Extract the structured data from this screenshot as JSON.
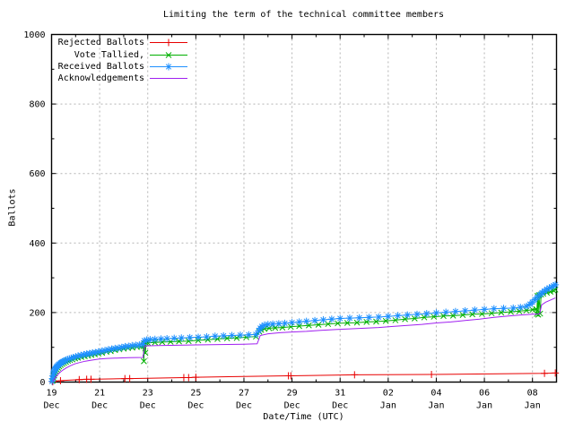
{
  "title": "Limiting the term of the technical committee members",
  "x_axis": {
    "label": "Date/Time (UTC)",
    "ticks": [
      {
        "d": 0,
        "top": "19",
        "bottom": "Dec"
      },
      {
        "d": 2,
        "top": "21",
        "bottom": "Dec"
      },
      {
        "d": 4,
        "top": "23",
        "bottom": "Dec"
      },
      {
        "d": 6,
        "top": "25",
        "bottom": "Dec"
      },
      {
        "d": 8,
        "top": "27",
        "bottom": "Dec"
      },
      {
        "d": 10,
        "top": "29",
        "bottom": "Dec"
      },
      {
        "d": 12,
        "top": "31",
        "bottom": "Dec"
      },
      {
        "d": 14,
        "top": "02",
        "bottom": "Jan"
      },
      {
        "d": 16,
        "top": "04",
        "bottom": "Jan"
      },
      {
        "d": 18,
        "top": "06",
        "bottom": "Jan"
      },
      {
        "d": 20,
        "top": "08",
        "bottom": "Jan"
      }
    ],
    "minor_days": [
      1,
      3,
      5,
      7,
      9,
      11,
      13,
      15,
      17,
      19
    ]
  },
  "y_axis": {
    "label": "Ballots",
    "ticks": [
      {
        "v": 0,
        "label": "0"
      },
      {
        "v": 200,
        "label": "200"
      },
      {
        "v": 400,
        "label": "400"
      },
      {
        "v": 600,
        "label": "600"
      },
      {
        "v": 800,
        "label": "800"
      },
      {
        "v": 1000,
        "label": "1000"
      }
    ],
    "minor_values": [
      100,
      300,
      500,
      700,
      900
    ]
  },
  "legend": {
    "entries": [
      {
        "label": "Rejected Ballots",
        "color": "#e80000",
        "marker": "plus"
      },
      {
        "label": "Vote Tallied,",
        "color": "#00b000",
        "marker": "cross"
      },
      {
        "label": "Received Ballots",
        "color": "#1e90ff",
        "marker": "star"
      },
      {
        "label": "Acknowledgements",
        "color": "#a020f0",
        "marker": "none"
      }
    ]
  },
  "colors": {
    "grid": "#b4b4b4",
    "axis": "#000000",
    "background": "#ffffff"
  },
  "chart_data": {
    "type": "line",
    "title": "Limiting the term of the technical committee members",
    "xlabel": "Date/Time (UTC)",
    "ylabel": "Ballots",
    "x_unit": "days since 19 Dec 00:00 UTC",
    "xlim": [
      0,
      21
    ],
    "ylim": [
      0,
      1000
    ],
    "grid": "dashed, at major ticks",
    "legend_position": "top-left inside",
    "series": [
      {
        "name": "Rejected Ballots",
        "color": "#e80000",
        "marker": "plus",
        "points": [
          [
            0.05,
            1
          ],
          [
            0.37,
            4
          ],
          [
            1.15,
            7
          ],
          [
            1.46,
            8
          ],
          [
            1.64,
            8
          ],
          [
            3.05,
            10
          ],
          [
            3.25,
            10
          ],
          [
            5.5,
            13
          ],
          [
            5.7,
            13
          ],
          [
            6.0,
            14
          ],
          [
            9.85,
            18
          ],
          [
            9.95,
            18
          ],
          [
            12.6,
            21
          ],
          [
            15.8,
            22
          ],
          [
            20.5,
            25
          ],
          [
            20.95,
            26
          ]
        ]
      },
      {
        "name": "Vote Tallied,",
        "color": "#00b000",
        "marker": "cross",
        "points": [
          [
            0.05,
            4
          ],
          [
            0.08,
            12
          ],
          [
            0.11,
            19
          ],
          [
            0.14,
            25
          ],
          [
            0.18,
            31
          ],
          [
            0.22,
            36
          ],
          [
            0.27,
            41
          ],
          [
            0.32,
            45
          ],
          [
            0.38,
            49
          ],
          [
            0.45,
            52
          ],
          [
            0.52,
            55
          ],
          [
            0.6,
            58
          ],
          [
            0.68,
            61
          ],
          [
            0.77,
            63
          ],
          [
            0.87,
            65
          ],
          [
            0.98,
            68
          ],
          [
            1.1,
            70
          ],
          [
            1.24,
            72
          ],
          [
            1.38,
            74
          ],
          [
            1.52,
            76
          ],
          [
            1.66,
            78
          ],
          [
            1.8,
            80
          ],
          [
            1.95,
            82
          ],
          [
            2.1,
            84
          ],
          [
            2.28,
            87
          ],
          [
            2.46,
            89
          ],
          [
            2.64,
            92
          ],
          [
            2.82,
            94
          ],
          [
            3.0,
            96
          ],
          [
            3.18,
            98
          ],
          [
            3.36,
            99
          ],
          [
            3.55,
            101
          ],
          [
            3.72,
            102
          ],
          [
            3.82,
            103
          ],
          [
            3.84,
            60
          ],
          [
            3.86,
            110
          ],
          [
            3.9,
            84
          ],
          [
            3.93,
            112
          ],
          [
            4.0,
            113
          ],
          [
            4.3,
            114
          ],
          [
            4.6,
            115
          ],
          [
            4.95,
            116
          ],
          [
            5.3,
            117
          ],
          [
            5.7,
            118
          ],
          [
            6.1,
            120
          ],
          [
            6.5,
            122
          ],
          [
            6.9,
            124
          ],
          [
            7.3,
            126
          ],
          [
            7.7,
            127
          ],
          [
            8.1,
            129
          ],
          [
            8.5,
            131
          ],
          [
            8.64,
            145
          ],
          [
            8.72,
            150
          ],
          [
            8.85,
            153
          ],
          [
            9.05,
            155
          ],
          [
            9.3,
            156
          ],
          [
            9.6,
            157
          ],
          [
            9.95,
            159
          ],
          [
            10.3,
            161
          ],
          [
            10.7,
            163
          ],
          [
            11.1,
            165
          ],
          [
            11.5,
            167
          ],
          [
            11.9,
            169
          ],
          [
            12.3,
            170
          ],
          [
            12.7,
            171
          ],
          [
            13.1,
            173
          ],
          [
            13.5,
            174
          ],
          [
            13.9,
            176
          ],
          [
            14.3,
            178
          ],
          [
            14.7,
            181
          ],
          [
            15.1,
            183
          ],
          [
            15.5,
            186
          ],
          [
            15.9,
            188
          ],
          [
            16.3,
            190
          ],
          [
            16.7,
            191
          ],
          [
            17.1,
            193
          ],
          [
            17.5,
            195
          ],
          [
            17.9,
            196
          ],
          [
            18.3,
            198
          ],
          [
            18.7,
            200
          ],
          [
            19.1,
            202
          ],
          [
            19.45,
            204
          ],
          [
            19.75,
            206
          ],
          [
            20.0,
            208
          ],
          [
            20.15,
            210
          ],
          [
            20.18,
            196
          ],
          [
            20.21,
            248
          ],
          [
            20.24,
            194
          ],
          [
            20.27,
            250
          ],
          [
            20.32,
            197
          ],
          [
            20.36,
            252
          ],
          [
            20.45,
            254
          ],
          [
            20.6,
            257
          ],
          [
            20.75,
            260
          ],
          [
            20.88,
            263
          ],
          [
            20.95,
            266
          ]
        ]
      },
      {
        "name": "Received Ballots",
        "color": "#1e90ff",
        "marker": "star",
        "points": [
          [
            0.02,
            2
          ],
          [
            0.04,
            10
          ],
          [
            0.06,
            18
          ],
          [
            0.08,
            24
          ],
          [
            0.1,
            29
          ],
          [
            0.12,
            33
          ],
          [
            0.15,
            37
          ],
          [
            0.18,
            41
          ],
          [
            0.21,
            44
          ],
          [
            0.25,
            47
          ],
          [
            0.29,
            50
          ],
          [
            0.33,
            52
          ],
          [
            0.38,
            55
          ],
          [
            0.43,
            57
          ],
          [
            0.48,
            59
          ],
          [
            0.54,
            61
          ],
          [
            0.6,
            63
          ],
          [
            0.67,
            65
          ],
          [
            0.74,
            67
          ],
          [
            0.82,
            69
          ],
          [
            0.9,
            71
          ],
          [
            1.0,
            73
          ],
          [
            1.1,
            75
          ],
          [
            1.22,
            77
          ],
          [
            1.34,
            79
          ],
          [
            1.46,
            81
          ],
          [
            1.58,
            82
          ],
          [
            1.7,
            84
          ],
          [
            1.82,
            85
          ],
          [
            1.95,
            87
          ],
          [
            2.08,
            89
          ],
          [
            2.22,
            91
          ],
          [
            2.36,
            93
          ],
          [
            2.5,
            95
          ],
          [
            2.64,
            97
          ],
          [
            2.78,
            98
          ],
          [
            2.92,
            100
          ],
          [
            3.06,
            102
          ],
          [
            3.2,
            103
          ],
          [
            3.35,
            105
          ],
          [
            3.5,
            106
          ],
          [
            3.65,
            107
          ],
          [
            3.8,
            108
          ],
          [
            3.86,
            119
          ],
          [
            3.95,
            121
          ],
          [
            4.1,
            122
          ],
          [
            4.3,
            123
          ],
          [
            4.55,
            124
          ],
          [
            4.8,
            125
          ],
          [
            5.1,
            126
          ],
          [
            5.4,
            127
          ],
          [
            5.75,
            128
          ],
          [
            6.1,
            129
          ],
          [
            6.45,
            130
          ],
          [
            6.8,
            132
          ],
          [
            7.15,
            133
          ],
          [
            7.5,
            134
          ],
          [
            7.85,
            135
          ],
          [
            8.2,
            136
          ],
          [
            8.5,
            137
          ],
          [
            8.62,
            148
          ],
          [
            8.68,
            155
          ],
          [
            8.75,
            160
          ],
          [
            8.85,
            164
          ],
          [
            9.0,
            166
          ],
          [
            9.2,
            167
          ],
          [
            9.45,
            168
          ],
          [
            9.7,
            169
          ],
          [
            10.0,
            171
          ],
          [
            10.3,
            173
          ],
          [
            10.6,
            175
          ],
          [
            10.95,
            177
          ],
          [
            11.3,
            179
          ],
          [
            11.65,
            181
          ],
          [
            12.0,
            183
          ],
          [
            12.4,
            184
          ],
          [
            12.8,
            185
          ],
          [
            13.2,
            186
          ],
          [
            13.6,
            187
          ],
          [
            14.0,
            189
          ],
          [
            14.4,
            191
          ],
          [
            14.8,
            193
          ],
          [
            15.2,
            195
          ],
          [
            15.6,
            197
          ],
          [
            16.0,
            199
          ],
          [
            16.4,
            201
          ],
          [
            16.8,
            203
          ],
          [
            17.2,
            205
          ],
          [
            17.6,
            207
          ],
          [
            18.0,
            209
          ],
          [
            18.4,
            211
          ],
          [
            18.8,
            212
          ],
          [
            19.2,
            213
          ],
          [
            19.5,
            215
          ],
          [
            19.75,
            218
          ],
          [
            19.9,
            224
          ],
          [
            20.0,
            230
          ],
          [
            20.1,
            237
          ],
          [
            20.2,
            244
          ],
          [
            20.3,
            251
          ],
          [
            20.4,
            257
          ],
          [
            20.5,
            262
          ],
          [
            20.6,
            267
          ],
          [
            20.7,
            271
          ],
          [
            20.8,
            274
          ],
          [
            20.88,
            277
          ],
          [
            20.95,
            280
          ]
        ]
      },
      {
        "name": "Acknowledgements",
        "color": "#a020f0",
        "marker": "none",
        "points": [
          [
            0.05,
            2
          ],
          [
            0.15,
            12
          ],
          [
            0.25,
            21
          ],
          [
            0.35,
            28
          ],
          [
            0.48,
            35
          ],
          [
            0.62,
            41
          ],
          [
            0.78,
            47
          ],
          [
            0.95,
            52
          ],
          [
            1.15,
            56
          ],
          [
            1.4,
            60
          ],
          [
            1.65,
            63
          ],
          [
            1.95,
            66
          ],
          [
            2.3,
            68
          ],
          [
            2.7,
            69
          ],
          [
            3.2,
            70
          ],
          [
            3.8,
            71
          ],
          [
            3.88,
            104
          ],
          [
            4.4,
            105
          ],
          [
            5.2,
            106
          ],
          [
            6.0,
            107
          ],
          [
            7.0,
            108
          ],
          [
            8.0,
            109
          ],
          [
            8.55,
            110
          ],
          [
            8.68,
            134
          ],
          [
            9.0,
            139
          ],
          [
            9.5,
            142
          ],
          [
            10.0,
            144
          ],
          [
            10.6,
            146
          ],
          [
            11.2,
            149
          ],
          [
            11.8,
            151
          ],
          [
            12.4,
            153
          ],
          [
            13.0,
            155
          ],
          [
            13.6,
            157
          ],
          [
            14.2,
            160
          ],
          [
            14.8,
            163
          ],
          [
            15.4,
            166
          ],
          [
            16.0,
            170
          ],
          [
            16.6,
            173
          ],
          [
            17.2,
            177
          ],
          [
            17.8,
            181
          ],
          [
            18.4,
            186
          ],
          [
            19.0,
            190
          ],
          [
            19.5,
            193
          ],
          [
            20.0,
            195
          ],
          [
            20.3,
            196
          ],
          [
            20.38,
            222
          ],
          [
            20.55,
            230
          ],
          [
            20.75,
            236
          ],
          [
            20.95,
            242
          ]
        ]
      }
    ]
  }
}
